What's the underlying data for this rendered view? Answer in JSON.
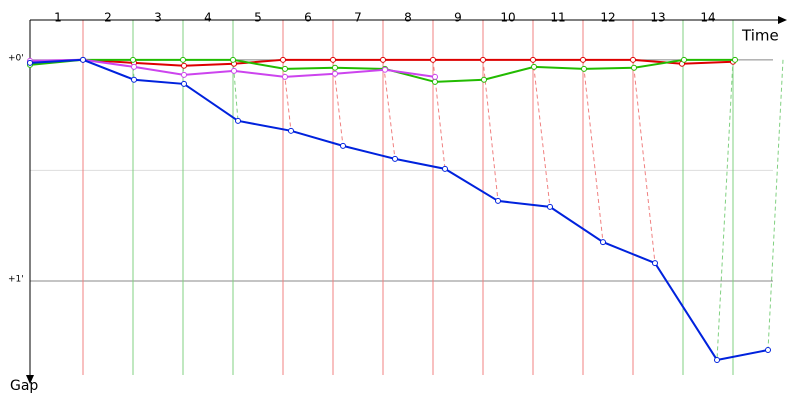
{
  "chart_data": {
    "type": "line",
    "x_label": "Time",
    "y_label": "Gap",
    "categories": [
      "1",
      "2",
      "3",
      "4",
      "5",
      "6",
      "7",
      "8",
      "9",
      "10",
      "11",
      "12",
      "13",
      "14"
    ],
    "xlim": [
      -0.06,
      14.8
    ],
    "ylim": [
      -0.18,
      1.425
    ],
    "y_inverted": true,
    "yticks": [
      {
        "value": 0,
        "label": "+0'"
      },
      {
        "value": 1,
        "label": "+1'"
      }
    ],
    "minor_yticks": [
      0.5
    ],
    "lap_line_colors": [
      "#f08080",
      "#80d080",
      "#80d080",
      "#80d080",
      "#f08080",
      "#f08080",
      "#f08080",
      "#f08080",
      "#f08080",
      "#f08080",
      "#f08080",
      "#f08080",
      "#80d080",
      "#80d080"
    ],
    "series": [
      {
        "color": "#dd0000",
        "x": [
          -0.06,
          1,
          2.02,
          3.02,
          4.02,
          5,
          6,
          7,
          8,
          9,
          10,
          11,
          12,
          12.98,
          14
        ],
        "values": [
          0.009,
          0,
          0.014,
          0.027,
          0.018,
          0,
          0,
          0,
          0,
          0,
          0,
          0,
          0,
          0.018,
          0.009
        ]
      },
      {
        "color": "#22bb00",
        "x": [
          -0.06,
          1,
          2,
          3,
          4,
          5.04,
          6.04,
          7.04,
          8.04,
          9.02,
          10.02,
          11.02,
          12.02,
          13.02,
          14.04
        ],
        "values": [
          0.023,
          0,
          0,
          0,
          0,
          0.041,
          0.036,
          0.041,
          0.1,
          0.09,
          0.032,
          0.041,
          0.036,
          0,
          0
        ]
      },
      {
        "color": "#cc44ee",
        "x": [
          -0.06,
          1,
          2.02,
          3.02,
          4.02,
          5.04,
          6.04,
          7.04,
          8.04
        ],
        "values": [
          0.005,
          0,
          0.032,
          0.068,
          0.05,
          0.077,
          0.063,
          0.045,
          0.077
        ]
      },
      {
        "color": "#0022dd",
        "x": [
          -0.06,
          1,
          2.02,
          3.02,
          4.1,
          5.16,
          6.2,
          7.24,
          8.24,
          9.3,
          10.34,
          11.4,
          12.44,
          13.68,
          14.7
        ],
        "values": [
          0.014,
          0,
          0.09,
          0.109,
          0.276,
          0.321,
          0.389,
          0.448,
          0.493,
          0.638,
          0.665,
          0.824,
          0.919,
          1.357,
          1.312
        ]
      }
    ]
  }
}
